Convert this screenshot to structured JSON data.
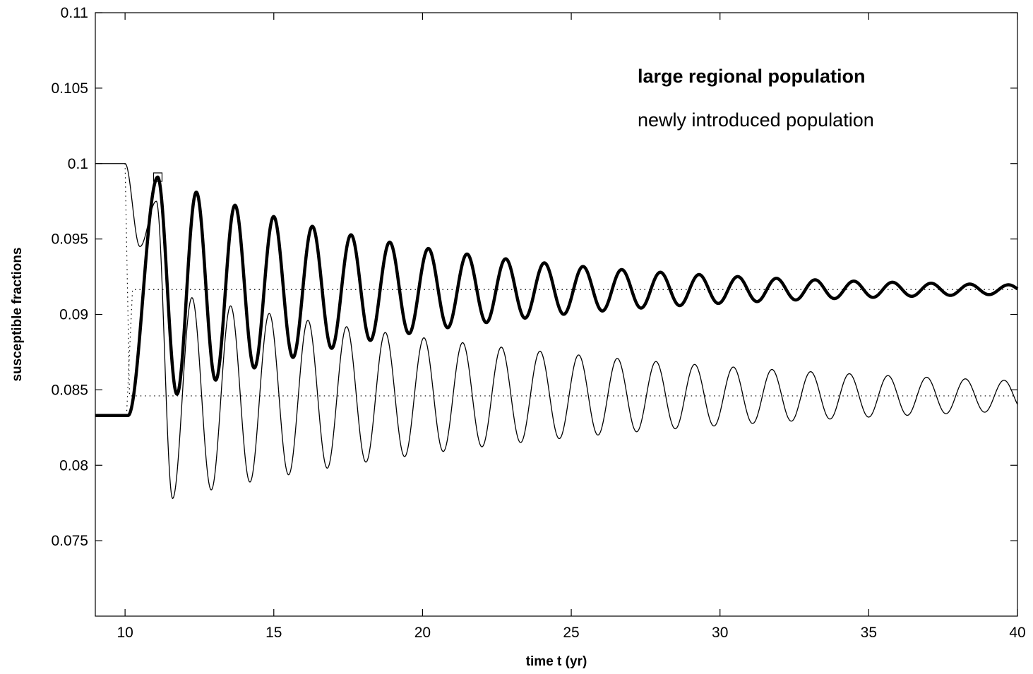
{
  "chart_data": {
    "type": "line",
    "xlabel": "time t (yr)",
    "ylabel": "susceptible fractions",
    "xlim": [
      9,
      40
    ],
    "ylim": [
      0.07,
      0.11
    ],
    "xticks": [
      10,
      15,
      20,
      25,
      30,
      35,
      40
    ],
    "yticks": [
      0.075,
      0.08,
      0.085,
      0.09,
      0.095,
      0.1,
      0.105,
      0.11
    ],
    "ytick_labels": [
      "0.075",
      "0.08",
      "0.085",
      "0.09",
      "0.095",
      "0.1",
      "0.105",
      "0.11"
    ],
    "grid": false,
    "legend_position": "top-right",
    "annotations": [
      {
        "text": "large regional population",
        "style": "bold"
      },
      {
        "text": "newly introduced population",
        "style": "normal"
      }
    ],
    "series": [
      {
        "name": "large regional population",
        "style": "thick-solid",
        "initial": 0.0833,
        "equilibrium": 0.09165,
        "start_time": 10.1,
        "first_peak": 0.0991,
        "first_peak_time": 11.1,
        "first_trough": 0.085,
        "first_trough_time": 11.6,
        "period": 1.3
      },
      {
        "name": "newly introduced population",
        "style": "thin-solid",
        "initial": 0.1,
        "equilibrium": 0.0846,
        "start_time": 10.0,
        "first_dip": 0.0945,
        "first_dip_time": 10.5,
        "first_trough": 0.0778,
        "first_trough_time": 11.6,
        "second_peak": 0.091,
        "second_peak_time": 12.5,
        "period": 1.3
      }
    ],
    "reference_lines": [
      {
        "y": 0.09165,
        "style": "dotted"
      },
      {
        "y": 0.0846,
        "style": "dotted"
      }
    ],
    "marker": {
      "x": 11.1,
      "y": 0.0991,
      "shape": "square"
    }
  }
}
